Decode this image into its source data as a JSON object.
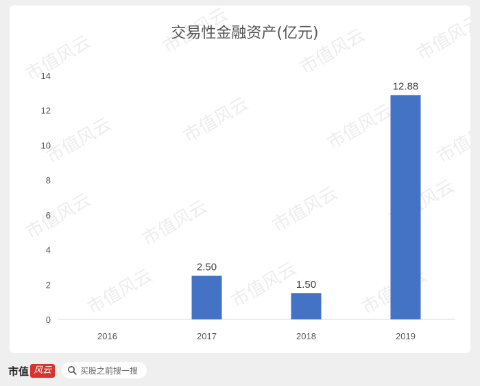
{
  "chart_data": {
    "type": "bar",
    "title": "交易性金融资产(亿元)",
    "categories": [
      "2016",
      "2017",
      "2018",
      "2019"
    ],
    "values": [
      0,
      2.5,
      1.5,
      12.88
    ],
    "data_labels": [
      "",
      "2.50",
      "1.50",
      "12.88"
    ],
    "ylim": [
      0,
      14
    ],
    "yticks": [
      "0",
      "2",
      "4",
      "6",
      "8",
      "10",
      "12",
      "14"
    ],
    "xlabel": "",
    "ylabel": "",
    "grid": false,
    "bar_color": "#4472c4"
  },
  "watermark": {
    "text": "市值风云"
  },
  "footer": {
    "brand_text": "市值",
    "brand_seal": "风云",
    "search_placeholder": "买股之前搜一搜"
  }
}
